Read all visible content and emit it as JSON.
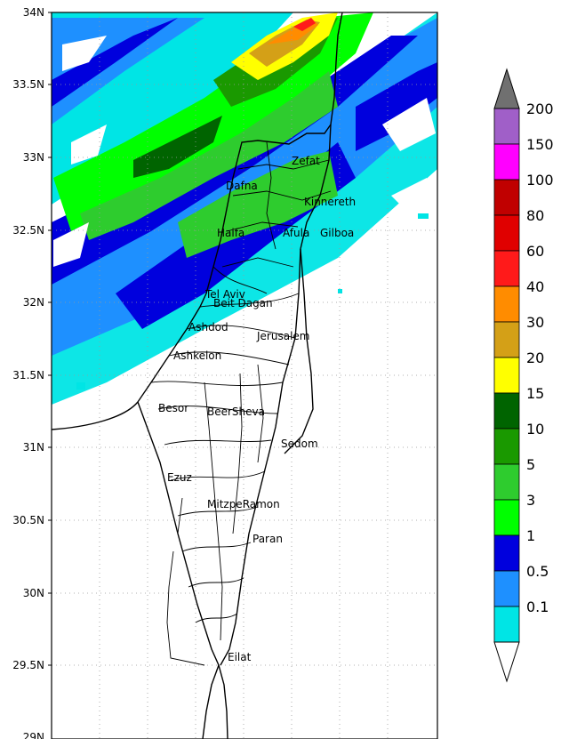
{
  "map": {
    "lat_labels": [
      "34N",
      "33.5N",
      "33N",
      "32.5N",
      "32N",
      "31.5N",
      "31N",
      "30.5N",
      "30N",
      "29.5N",
      "29N"
    ],
    "cities": [
      {
        "name": "Zefat"
      },
      {
        "name": "Dafna"
      },
      {
        "name": "Kinnereth"
      },
      {
        "name": "Haifa"
      },
      {
        "name": "Afula"
      },
      {
        "name": "Tel Aviv"
      },
      {
        "name": "Beit Dagan"
      },
      {
        "name": "Gilboa"
      },
      {
        "name": "Jerusalem"
      },
      {
        "name": "Ashdod"
      },
      {
        "name": "Ashkelon"
      },
      {
        "name": "Besor"
      },
      {
        "name": "BeerSheva"
      },
      {
        "name": "Sedom"
      },
      {
        "name": "Ezuz"
      },
      {
        "name": "MitzpeRamon"
      },
      {
        "name": "Paran"
      },
      {
        "name": "Eilat"
      }
    ]
  },
  "colorbar": {
    "labels": [
      "200",
      "150",
      "100",
      "80",
      "60",
      "40",
      "30",
      "20",
      "15",
      "10",
      "5",
      "3",
      "1",
      "0.5",
      "0.1"
    ],
    "colors": [
      "#a05fc8",
      "#ff00ff",
      "#c00000",
      "#e00000",
      "#ff1a1a",
      "#ff8c00",
      "#d4a017",
      "#ffff00",
      "#006400",
      "#1a9900",
      "#2ecc2e",
      "#00ff00",
      "#0000dd",
      "#1e90ff",
      "#00e5e5"
    ],
    "over_color": "#707070",
    "under_color": "#ffffff"
  }
}
